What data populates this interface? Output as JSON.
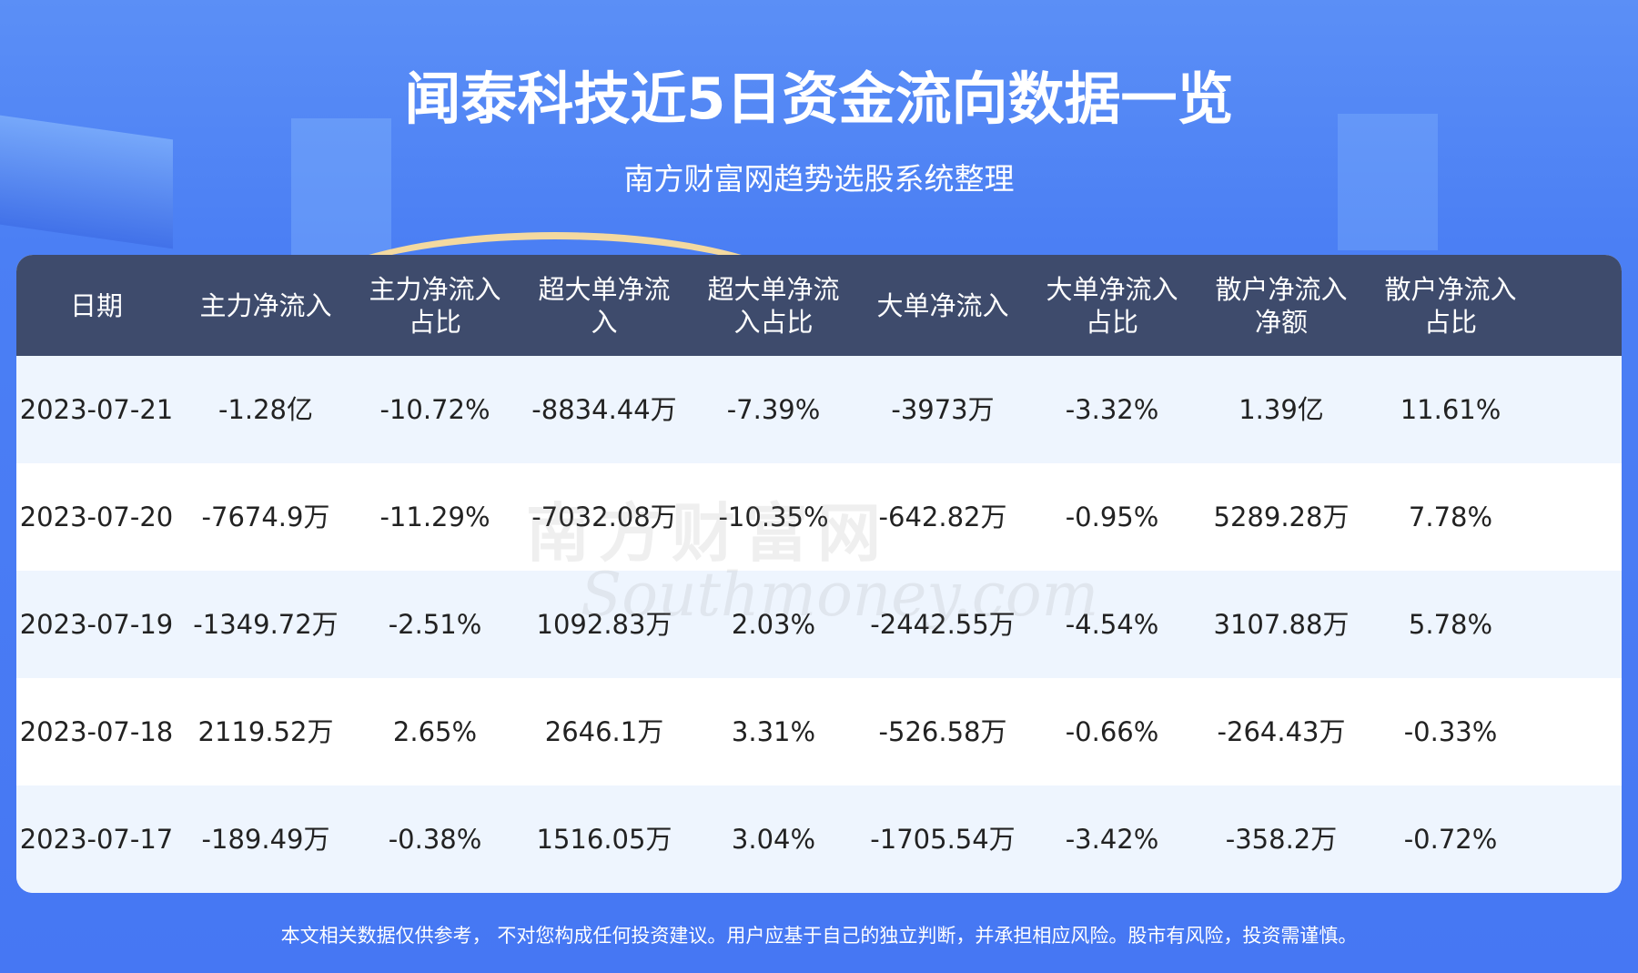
{
  "title": "闻泰科技近5日资金流向数据一览",
  "subtitle": "南方财富网趋势选股系统整理",
  "table": {
    "headers": [
      "日期",
      "主力净流入",
      "主力净流入\n占比",
      "超大单净流\n入",
      "超大单净流\n入占比",
      "大单净流入",
      "大单净流入\n占比",
      "散户净流入\n净额",
      "散户净流入\n占比"
    ],
    "rows": [
      [
        "2023-07-21",
        "-1.28亿",
        "-10.72%",
        "-8834.44万",
        "-7.39%",
        "-3973万",
        "-3.32%",
        "1.39亿",
        "11.61%"
      ],
      [
        "2023-07-20",
        "-7674.9万",
        "-11.29%",
        "-7032.08万",
        "-10.35%",
        "-642.82万",
        "-0.95%",
        "5289.28万",
        "7.78%"
      ],
      [
        "2023-07-19",
        "-1349.72万",
        "-2.51%",
        "1092.83万",
        "2.03%",
        "-2442.55万",
        "-4.54%",
        "3107.88万",
        "5.78%"
      ],
      [
        "2023-07-18",
        "2119.52万",
        "2.65%",
        "2646.1万",
        "3.31%",
        "-526.58万",
        "-0.66%",
        "-264.43万",
        "-0.33%"
      ],
      [
        "2023-07-17",
        "-189.49万",
        "-0.38%",
        "1516.05万",
        "3.04%",
        "-1705.54万",
        "-3.42%",
        "-358.2万",
        "-0.72%"
      ]
    ]
  },
  "watermark": {
    "cn": "南方财富网",
    "en": "Southmoney.com"
  },
  "footer": "本文相关数据仅供参考， 不对您构成任何投资建议。用户应基于自己的独立判断，并承担相应风险。股市有风险，投资需谨慎。",
  "colors": {
    "header_bg": "#3e4b6c",
    "page_bg": "#4677f3",
    "row_alt": "#eef5fe"
  }
}
